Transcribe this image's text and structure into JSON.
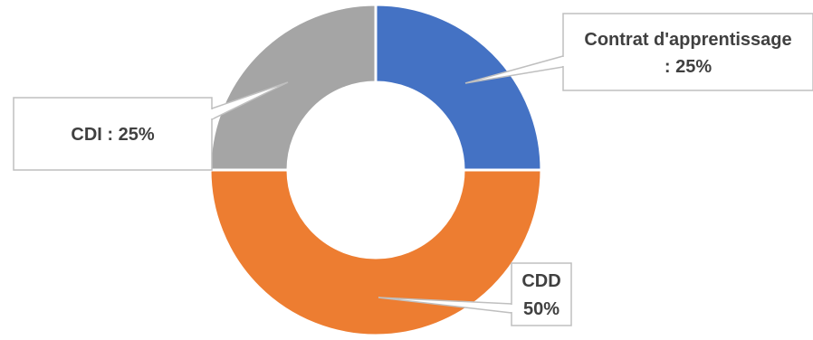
{
  "chart_data": {
    "type": "pie",
    "variant": "donut",
    "title": "",
    "slices": [
      {
        "category": "Contrat d'apprentissage",
        "value": 25,
        "color": "#4472C4",
        "label_lines": [
          "Contrat d'apprentissage",
          ": 25%"
        ]
      },
      {
        "category": "CDD",
        "value": 50,
        "color": "#ED7D31",
        "label_lines": [
          "CDD",
          "50%"
        ]
      },
      {
        "category": "CDI",
        "value": 25,
        "color": "#A5A5A5",
        "label_lines": [
          "CDI : 25%"
        ]
      }
    ],
    "legend": "none",
    "start_angle": "12 o'clock, clockwise",
    "label_style": "callouts"
  }
}
